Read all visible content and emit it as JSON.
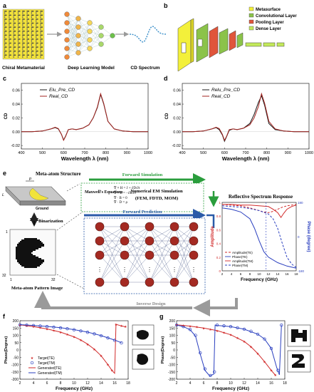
{
  "panel_labels": {
    "a": "a",
    "b": "b",
    "c": "c",
    "d": "d",
    "e": "e",
    "f": "f",
    "g": "g"
  },
  "panel_a": {
    "item1": "Chiral Metamaterial",
    "item2": "Deep Learning Model",
    "item3": "CD Spectrum"
  },
  "panel_b": {
    "legend": [
      "Metasurface",
      "Convolutional Layer",
      "Pooling Layer",
      "Dense Layer"
    ],
    "colors": {
      "metasurface": "#f3f03a",
      "conv": "#8bc34a",
      "pool": "#e0553b",
      "dense": "#c3ea5a"
    }
  },
  "colors": {
    "accent_green": "#2a9d3c",
    "accent_blue": "#2a5aa8",
    "series_red": "#d12a2a",
    "series_blue": "#2a3fbf"
  },
  "panel_e": {
    "meta_atom_title": "Meta-atom Structure",
    "ground_label": "Ground",
    "dim_label_p": "p",
    "dim_label_l": "L",
    "binarization": "Binarization",
    "pattern_title": "Meta-atom Pattern Image",
    "axis_1_top": "1",
    "axis_1_bottom": "1",
    "axis_32_left": "32",
    "axis_32_bottom": "32",
    "forward_simulation": "Forward Simulation",
    "maxwell_label": "Maxwell's Equations",
    "eq1": "∇ × H = J + ∂D/∂t",
    "eq2": "∇ × E = −∂B/∂t",
    "eq3": "∇ · B = 0",
    "eq4": "∇ · D = ρ",
    "numerical_title": "Numerical EM Simulation",
    "numerical_methods": "(FEM, FDTD, MOM)",
    "forward_prediction": "Forward Prediction",
    "inverse_design": "Inverse Design",
    "reflective_title": "Reflective Spectrum Response",
    "ylabel_left": "Amplitude",
    "ylabel_right": "Phase (degree)",
    "xlabel": "Frequency (GHz)",
    "x_ticks": [
      "2",
      "4",
      "6",
      "8",
      "10",
      "12",
      "14",
      "16",
      "18"
    ],
    "y_left_ticks": [
      "1",
      "0.8",
      "0.6",
      "0.4",
      "0.2",
      "0"
    ],
    "y_right_ticks": [
      "180",
      "0",
      "-180"
    ],
    "legend": [
      "Amplitude(TE)",
      "Phase(TE)",
      "Amplitude(TM)",
      "Phase(TM)"
    ]
  },
  "chart_data": [
    {
      "id": "c",
      "type": "line",
      "xlabel": "Wavelength λ (nm)",
      "ylabel": "CD",
      "x_ticks": [
        "400",
        "500",
        "600",
        "700",
        "800",
        "900",
        "1000"
      ],
      "y_ticks": [
        "0.06",
        "0.04",
        "0.02",
        "0.00",
        "-0.02"
      ],
      "xlim": [
        400,
        1000
      ],
      "ylim": [
        -0.025,
        0.07
      ],
      "series": [
        {
          "name": "Elu_Pre_CD",
          "color": "#1a1a1a",
          "x": [
            400,
            450,
            500,
            540,
            560,
            575,
            590,
            600,
            610,
            622,
            640,
            660,
            690,
            720,
            740,
            760,
            775,
            790,
            810,
            840,
            880,
            930,
            1000
          ],
          "y": [
            0,
            0,
            0.001,
            0.004,
            0.006,
            0.004,
            -0.004,
            -0.012,
            -0.006,
            0.003,
            0.004,
            0.003,
            0.005,
            0.01,
            0.02,
            0.035,
            0.054,
            0.04,
            0.015,
            0.004,
            0.001,
            0,
            0
          ]
        },
        {
          "name": "Real_CD",
          "color": "#a3231f",
          "x": [
            400,
            450,
            500,
            540,
            560,
            575,
            590,
            600,
            610,
            622,
            640,
            660,
            690,
            720,
            740,
            760,
            775,
            790,
            810,
            840,
            880,
            930,
            1000
          ],
          "y": [
            0,
            0,
            0.001,
            0.004,
            0.0065,
            0.0045,
            -0.004,
            -0.0125,
            -0.0065,
            0.003,
            0.004,
            0.003,
            0.005,
            0.01,
            0.02,
            0.036,
            0.055,
            0.041,
            0.015,
            0.004,
            0.001,
            0,
            0
          ]
        }
      ]
    },
    {
      "id": "d",
      "type": "line",
      "xlabel": "Wavelength λ (nm)",
      "ylabel": "CD",
      "x_ticks": [
        "400",
        "500",
        "600",
        "700",
        "800",
        "900",
        "1000"
      ],
      "y_ticks": [
        "0.06",
        "0.04",
        "0.02",
        "0.00",
        "-0.02"
      ],
      "xlim": [
        400,
        1000
      ],
      "ylim": [
        -0.025,
        0.07
      ],
      "series": [
        {
          "name": "Relu_Pre_CD",
          "color": "#1a1a1a",
          "x": [
            400,
            450,
            500,
            540,
            560,
            575,
            590,
            600,
            610,
            622,
            640,
            660,
            690,
            720,
            740,
            760,
            775,
            790,
            810,
            840,
            880,
            930,
            1000
          ],
          "y": [
            0,
            0,
            0.001,
            0.004,
            0.006,
            0.003,
            -0.005,
            -0.014,
            -0.007,
            0.002,
            0.004,
            0.003,
            0.005,
            0.012,
            0.025,
            0.042,
            0.052,
            0.038,
            0.012,
            0.003,
            0.001,
            0,
            0
          ]
        },
        {
          "name": "Real_CD",
          "color": "#a3231f",
          "x": [
            400,
            450,
            500,
            540,
            560,
            575,
            590,
            600,
            610,
            622,
            640,
            660,
            690,
            720,
            740,
            760,
            775,
            790,
            810,
            840,
            880,
            930,
            1000
          ],
          "y": [
            0,
            0,
            0.001,
            0.004,
            0.0065,
            0.0045,
            -0.004,
            -0.0125,
            -0.0065,
            0.003,
            0.004,
            0.003,
            0.005,
            0.01,
            0.02,
            0.036,
            0.055,
            0.041,
            0.015,
            0.004,
            0.001,
            0,
            0
          ]
        }
      ]
    },
    {
      "id": "e-spectrum",
      "type": "line",
      "xlim": [
        2,
        18
      ],
      "ylim": [
        0,
        1
      ],
      "series": [
        {
          "name": "Amplitude(TE)",
          "color": "#d12a2a",
          "dash": "3,2",
          "x": [
            2,
            4,
            6,
            8,
            10,
            11,
            12,
            13,
            14,
            15,
            16,
            17,
            18
          ],
          "y": [
            0.97,
            0.96,
            0.95,
            0.92,
            0.88,
            0.86,
            0.85,
            0.87,
            0.9,
            0.93,
            0.95,
            0.96,
            0.97
          ]
        },
        {
          "name": "Phase(TE)",
          "color": "#2a3fbf",
          "dash": "",
          "x": [
            2,
            4,
            6,
            8,
            9,
            10,
            11,
            12,
            14,
            16,
            18
          ],
          "y": [
            0.92,
            0.9,
            0.86,
            0.76,
            0.62,
            0.44,
            0.28,
            0.2,
            0.12,
            0.07,
            0.04
          ]
        },
        {
          "name": "Amplitude(TM)",
          "color": "#d12a2a",
          "dash": "",
          "x": [
            2,
            4,
            6,
            8,
            10,
            12,
            13,
            14,
            14.7,
            15.3,
            16,
            17,
            18
          ],
          "y": [
            0.97,
            0.97,
            0.96,
            0.96,
            0.95,
            0.94,
            0.9,
            0.85,
            0.78,
            0.84,
            0.9,
            0.94,
            0.96
          ]
        },
        {
          "name": "Phase(TM)",
          "color": "#2a3fbf",
          "dash": "3,2",
          "x": [
            2,
            4,
            6,
            8,
            10,
            12,
            13,
            14,
            15,
            16,
            17,
            18
          ],
          "y": [
            0.95,
            0.94,
            0.93,
            0.91,
            0.88,
            0.83,
            0.76,
            0.62,
            0.4,
            0.2,
            0.1,
            0.05
          ]
        }
      ]
    },
    {
      "id": "f",
      "type": "line",
      "xlabel": "Frequency (GHz)",
      "ylabel": "Phase(Degree)",
      "x_ticks": [
        "2",
        "4",
        "6",
        "8",
        "10",
        "12",
        "14",
        "16",
        "18"
      ],
      "y_ticks": [
        "200",
        "150",
        "100",
        "50",
        "0",
        "-50",
        "-100",
        "-150",
        "-200"
      ],
      "xlim": [
        2,
        18
      ],
      "ylim": [
        -200,
        200
      ],
      "legend": [
        "Target(TE)",
        "Target(TM)",
        "Generated(TE)",
        "Generated(TM)"
      ],
      "series": [
        {
          "name": "Target(TE)",
          "color": "#d12a2a",
          "marker": "star",
          "x": [
            2,
            3,
            4,
            5,
            6,
            7,
            8,
            9,
            10,
            11,
            12,
            13,
            14,
            15,
            15.6,
            16.2,
            17,
            17.6
          ],
          "y": [
            170,
            165,
            160,
            153,
            145,
            135,
            123,
            108,
            90,
            68,
            40,
            5,
            -40,
            -100,
            -140,
            175,
            165,
            160
          ]
        },
        {
          "name": "Target(TM)",
          "color": "#2a3fbf",
          "marker": "circle",
          "x": [
            2,
            3,
            4,
            5,
            6,
            7,
            8,
            9,
            10,
            11,
            12,
            13,
            14,
            15,
            16,
            17
          ],
          "y": [
            172,
            170,
            167,
            164,
            160,
            156,
            151,
            145,
            138,
            130,
            121,
            110,
            97,
            82,
            66,
            48
          ]
        },
        {
          "name": "Generated(TE)",
          "color": "#d12a2a",
          "marker": "",
          "x": [
            2,
            4,
            6,
            8,
            10,
            11,
            12,
            13,
            14,
            15,
            15.6,
            16,
            16.2,
            17,
            17.6
          ],
          "y": [
            172,
            160,
            144,
            122,
            90,
            68,
            40,
            5,
            -40,
            -100,
            -140,
            -160,
            175,
            165,
            158
          ]
        },
        {
          "name": "Generated(TM)",
          "color": "#2a3fbf",
          "marker": "",
          "x": [
            2,
            4,
            6,
            8,
            10,
            12,
            14,
            16,
            17
          ],
          "y": [
            173,
            168,
            161,
            152,
            139,
            122,
            98,
            68,
            50
          ]
        }
      ]
    },
    {
      "id": "g",
      "type": "line",
      "xlabel": "Frequency (GHz)",
      "ylabel": "Phase(Degree)",
      "x_ticks": [
        "2",
        "4",
        "6",
        "8",
        "10",
        "12",
        "14",
        "16",
        "18"
      ],
      "y_ticks": [
        "200",
        "150",
        "100",
        "50",
        "0",
        "-50",
        "-100",
        "-150",
        "-200"
      ],
      "xlim": [
        2,
        18
      ],
      "ylim": [
        -200,
        200
      ],
      "series": [
        {
          "name": "Target(TE)",
          "color": "#d12a2a",
          "marker": "star",
          "x": [
            2,
            3,
            4,
            5,
            6,
            7,
            8,
            9,
            10,
            11,
            12,
            13,
            14,
            15,
            16,
            16.6
          ],
          "y": [
            172,
            168,
            163,
            158,
            150,
            142,
            132,
            120,
            104,
            84,
            58,
            22,
            -25,
            -80,
            -140,
            -170
          ]
        },
        {
          "name": "Target(TM)",
          "color": "#2a3fbf",
          "marker": "circle",
          "x": [
            2,
            3,
            4,
            4.8,
            5.5,
            6.2,
            7,
            7.6,
            8,
            9,
            10,
            11,
            12,
            13,
            14,
            15,
            16,
            17,
            17.5
          ],
          "y": [
            170,
            160,
            140,
            100,
            -20,
            -130,
            -175,
            -150,
            170,
            165,
            160,
            152,
            142,
            128,
            108,
            75,
            10,
            -140,
            170
          ]
        },
        {
          "name": "Generated(TE)",
          "color": "#d12a2a",
          "marker": "",
          "x": [
            2,
            4,
            6,
            8,
            10,
            12,
            13,
            14,
            15,
            16,
            16.6
          ],
          "y": [
            172,
            163,
            150,
            132,
            104,
            58,
            22,
            -25,
            -80,
            -140,
            -172
          ]
        },
        {
          "name": "Generated(TM)",
          "color": "#2a3fbf",
          "marker": "",
          "x": [
            2,
            3,
            4,
            4.8,
            5.5,
            6.2,
            6.9,
            7.5,
            7.7,
            8,
            10,
            12,
            14,
            15,
            16,
            16.8,
            17.2,
            17.5
          ],
          "y": [
            170,
            160,
            138,
            95,
            -30,
            -140,
            -178,
            -165,
            170,
            168,
            160,
            142,
            108,
            75,
            10,
            -120,
            -170,
            170
          ]
        }
      ]
    }
  ]
}
